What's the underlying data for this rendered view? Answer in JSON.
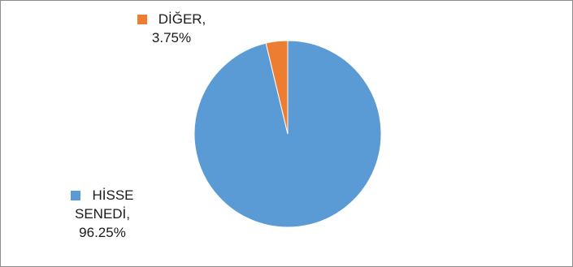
{
  "chart_data": {
    "type": "pie",
    "title": "",
    "slices": [
      {
        "name": "HİSSE SENEDİ",
        "value": 96.25,
        "label_line1": "HİSSE",
        "label_line2": "SENEDİ,",
        "value_label": "96.25%",
        "color": "#5b9bd5"
      },
      {
        "name": "DİĞER",
        "value": 3.75,
        "label_line1": "DİĞER,",
        "value_label": "3.75%",
        "color": "#ed7d31"
      }
    ],
    "start": "top",
    "direction": "clockwise",
    "labels": "outside, category name + percentage"
  }
}
